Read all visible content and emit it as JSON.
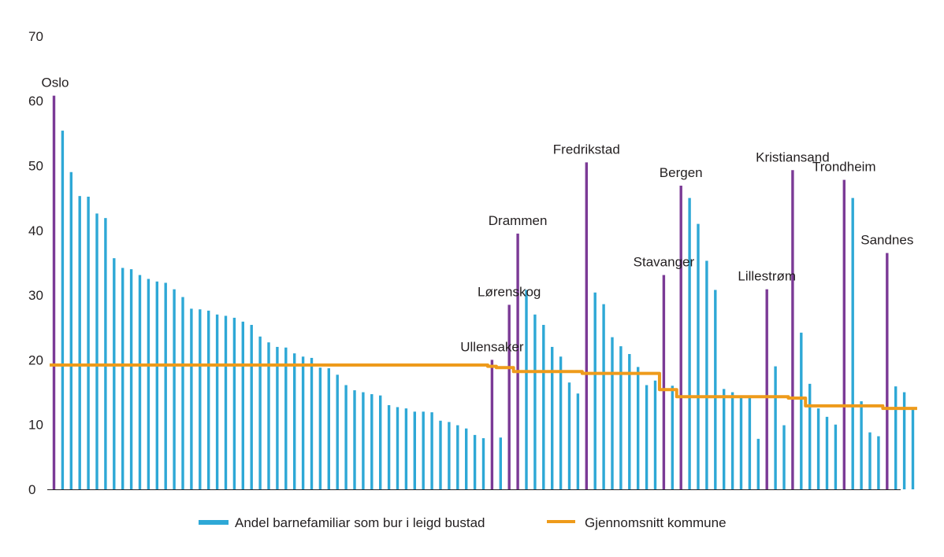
{
  "chart_data": {
    "type": "bar",
    "title": "",
    "xlabel": "",
    "ylabel": "",
    "ylim": [
      0,
      70
    ],
    "yticks": [
      0,
      10,
      20,
      30,
      40,
      50,
      60,
      70
    ],
    "grid": false,
    "legend_position": "bottom",
    "colors": {
      "bar": "#2ea8d6",
      "highlight": "#7b3a96",
      "average": "#ee9b1b",
      "axis": "#231f20"
    },
    "series": [
      {
        "name": "Andel barnefamiliar som bur i leigd bustad",
        "type": "bar",
        "values": [
          60.8,
          55.4,
          49.0,
          45.3,
          45.2,
          42.6,
          41.9,
          35.7,
          34.2,
          34.0,
          33.1,
          32.5,
          32.1,
          31.9,
          30.9,
          29.7,
          27.9,
          27.8,
          27.6,
          27.0,
          26.8,
          26.5,
          25.9,
          25.4,
          23.6,
          22.7,
          22.0,
          21.9,
          21.0,
          20.5,
          20.3,
          18.8,
          18.7,
          17.7,
          16.1,
          15.3,
          15.0,
          14.7,
          14.5,
          13.0,
          12.7,
          12.5,
          12.0,
          12.0,
          11.9,
          10.6,
          10.4,
          9.9,
          9.4,
          8.4,
          7.9,
          20.0,
          8.0,
          28.5,
          39.5,
          30.8,
          27.0,
          25.4,
          22.0,
          20.5,
          16.5,
          14.8,
          50.5,
          30.4,
          28.6,
          23.5,
          22.1,
          20.9,
          18.9,
          16.1,
          16.8,
          33.1,
          16.0,
          46.9,
          45.0,
          41.0,
          35.3,
          30.8,
          15.5,
          15.0,
          14.5,
          14.3,
          7.8,
          30.9,
          19.0,
          9.9,
          49.3,
          24.2,
          16.3,
          12.5,
          11.2,
          10.0,
          47.8,
          45.0,
          13.6,
          8.8,
          8.2,
          36.5,
          15.9,
          15.0,
          12.7
        ]
      },
      {
        "name": "Gjennomsnitt kommune",
        "type": "step",
        "segments": [
          {
            "from": 0,
            "to": 50,
            "value": 19.2
          },
          {
            "from": 51,
            "to": 51,
            "value": 19.0
          },
          {
            "from": 52,
            "to": 53,
            "value": 18.8
          },
          {
            "from": 54,
            "to": 61,
            "value": 18.2
          },
          {
            "from": 62,
            "to": 70,
            "value": 17.9
          },
          {
            "from": 71,
            "to": 72,
            "value": 15.4
          },
          {
            "from": 73,
            "to": 85,
            "value": 14.3
          },
          {
            "from": 86,
            "to": 87,
            "value": 14.1
          },
          {
            "from": 88,
            "to": 95,
            "value": 12.9
          },
          {
            "from": 96,
            "to": 96,
            "value": 12.9
          },
          {
            "from": 97,
            "to": 100,
            "value": 12.5
          }
        ]
      }
    ],
    "annotations": [
      {
        "label": "Oslo",
        "index": 0
      },
      {
        "label": "Ullensaker",
        "index": 51
      },
      {
        "label": "Lørenskog",
        "index": 53
      },
      {
        "label": "Drammen",
        "index": 54
      },
      {
        "label": "Fredrikstad",
        "index": 62
      },
      {
        "label": "Stavanger",
        "index": 71
      },
      {
        "label": "Bergen",
        "index": 73
      },
      {
        "label": "Lillestrøm",
        "index": 83
      },
      {
        "label": "Kristiansand",
        "index": 86
      },
      {
        "label": "Trondheim",
        "index": 92
      },
      {
        "label": "Sandnes",
        "index": 97
      }
    ]
  }
}
